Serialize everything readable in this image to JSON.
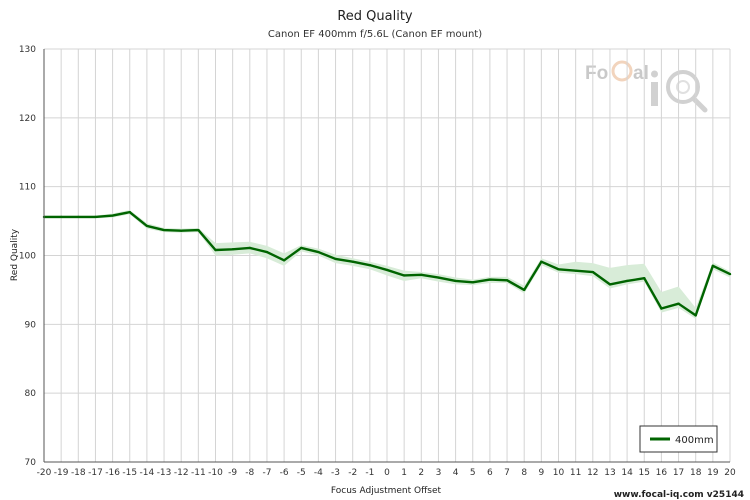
{
  "chart_data": {
    "type": "line",
    "title": "Red Quality",
    "subtitle": "Canon EF 400mm f/5.6L (Canon EF mount)",
    "xlabel": "Focus Adjustment Offset",
    "ylabel": "Red Quality",
    "xlim": [
      -20,
      20
    ],
    "ylim": [
      70,
      130
    ],
    "yticks": [
      70,
      80,
      90,
      100,
      110,
      120,
      130
    ],
    "grid": true,
    "legend_position": "bottom-right",
    "x": [
      -20,
      -19,
      -18,
      -17,
      -16,
      -15,
      -14,
      -13,
      -12,
      -11,
      -10,
      -9,
      -8,
      -7,
      -6,
      -5,
      -4,
      -3,
      -2,
      -1,
      0,
      1,
      2,
      3,
      4,
      5,
      6,
      7,
      8,
      9,
      10,
      11,
      12,
      13,
      14,
      15,
      16,
      17,
      18,
      19,
      20
    ],
    "series": [
      {
        "name": "400mm",
        "color": "#006400",
        "band_color": "#d8ecd8",
        "values": [
          105.6,
          105.6,
          105.6,
          105.6,
          105.8,
          106.3,
          104.3,
          103.7,
          103.6,
          103.7,
          100.8,
          100.9,
          101.1,
          100.5,
          99.3,
          101.1,
          100.5,
          99.5,
          99.1,
          98.6,
          97.9,
          97.1,
          97.2,
          96.8,
          96.3,
          96.1,
          96.5,
          96.4,
          95.0,
          99.1,
          98.0,
          97.8,
          97.6,
          95.8,
          96.3,
          96.7,
          92.3,
          93.0,
          91.3,
          98.5,
          97.3
        ],
        "upper": [
          105.8,
          105.8,
          105.8,
          105.8,
          106.1,
          106.6,
          104.7,
          104.0,
          103.9,
          104.0,
          101.8,
          101.9,
          102.0,
          101.4,
          100.3,
          101.5,
          101.0,
          100.1,
          99.6,
          99.1,
          98.5,
          97.8,
          97.6,
          97.3,
          96.8,
          96.5,
          96.9,
          96.9,
          95.6,
          99.6,
          98.7,
          99.1,
          98.9,
          98.2,
          98.6,
          98.8,
          94.7,
          95.5,
          92.4,
          99.0,
          97.7
        ],
        "lower": [
          105.4,
          105.4,
          105.4,
          105.4,
          105.5,
          106.0,
          103.9,
          103.4,
          103.3,
          103.4,
          100.0,
          100.1,
          100.3,
          99.6,
          98.5,
          100.6,
          100.0,
          98.9,
          98.5,
          98.0,
          97.1,
          96.3,
          96.7,
          96.2,
          95.8,
          95.7,
          96.0,
          96.0,
          94.5,
          98.6,
          97.5,
          97.3,
          97.0,
          95.2,
          95.8,
          96.2,
          91.7,
          92.4,
          90.8,
          98.0,
          96.8
        ]
      }
    ]
  },
  "watermark": {
    "brand": "FoCal iQ"
  },
  "footer": {
    "text": "www.focal-iq.com  v25144"
  }
}
